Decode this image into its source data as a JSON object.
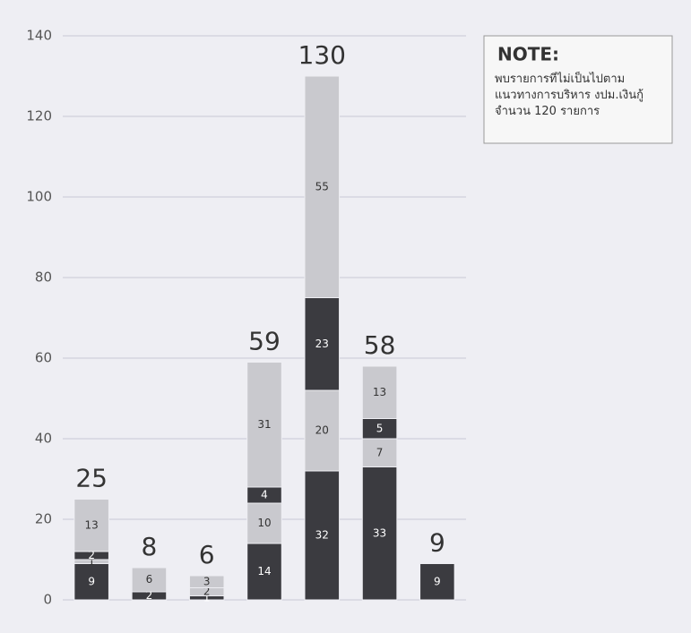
{
  "chart_data": {
    "type": "stacked-bar",
    "categories": [
      null,
      null,
      null,
      null,
      null,
      null,
      null
    ],
    "totals": [
      25,
      8,
      6,
      59,
      130,
      58,
      9
    ],
    "series": [
      {
        "color": "#3b3b40",
        "values": [
          9,
          2,
          1,
          14,
          32,
          33,
          9
        ]
      },
      {
        "color": "#c9c9ce",
        "values": [
          1,
          null,
          2,
          10,
          20,
          7,
          null
        ]
      },
      {
        "color": "#3b3b40",
        "values": [
          2,
          null,
          null,
          4,
          23,
          5,
          null
        ]
      },
      {
        "color": "#c9c9ce",
        "values": [
          13,
          6,
          3,
          31,
          55,
          13,
          null
        ]
      }
    ],
    "ylim": [
      0,
      140
    ],
    "yticks": [
      0,
      20,
      40,
      60,
      80,
      100,
      120,
      140
    ],
    "grid": true,
    "annotations": [
      {
        "title": "NOTE:",
        "text": "พบรายการที่ไม่เป็นไปตาม แนวทางการบริหาร งปม.เงินกู้ จำนวน 120 รายการ"
      }
    ]
  }
}
